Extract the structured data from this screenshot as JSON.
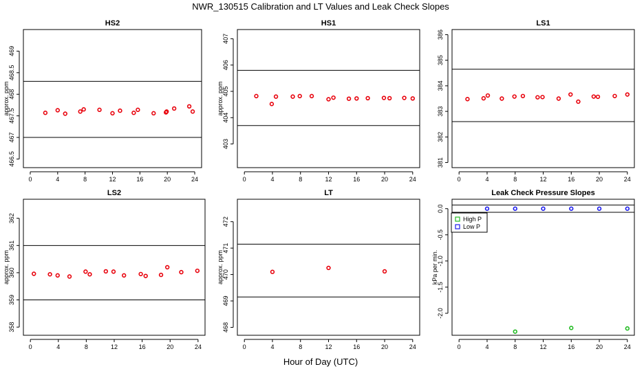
{
  "figure": {
    "suptitle": "NWR_130515  Calibration and LT Values and Leak Check Slopes",
    "xlabel": "Hour of Day (UTC)"
  },
  "chart_data": [
    {
      "type": "scatter",
      "title": "HS2",
      "ylabel": "approx. ppm",
      "xlim": [
        -1,
        25
      ],
      "x_ticks": [
        0,
        4,
        8,
        12,
        16,
        20,
        24
      ],
      "ylim": [
        466.3,
        469.5
      ],
      "y_ticks": [
        466.5,
        467,
        467.5,
        468,
        468.5,
        469
      ],
      "reference_lines": [
        468.3,
        467.0
      ],
      "marker_color": "#e8000b",
      "series": [
        {
          "x": [
            2.2,
            4.0,
            5.1,
            7.3,
            7.8,
            10.1,
            12.0,
            13.1,
            15.1,
            15.7,
            18.0,
            19.8,
            19.9,
            21.0,
            23.2,
            23.7
          ],
          "y": [
            467.57,
            467.63,
            467.55,
            467.6,
            467.65,
            467.64,
            467.56,
            467.62,
            467.57,
            467.64,
            467.56,
            467.58,
            467.6,
            467.67,
            467.72,
            467.6
          ]
        }
      ]
    },
    {
      "type": "scatter",
      "title": "HS1",
      "ylabel": "approx. ppm",
      "xlim": [
        -1,
        25
      ],
      "x_ticks": [
        0,
        4,
        8,
        12,
        16,
        20,
        24
      ],
      "ylim": [
        402.1,
        407.35
      ],
      "y_ticks": [
        403,
        404,
        405,
        406,
        407
      ],
      "reference_lines": [
        405.8,
        403.7
      ],
      "marker_color": "#e8000b",
      "series": [
        {
          "x": [
            1.7,
            3.9,
            4.5,
            6.9,
            7.9,
            9.6,
            12.0,
            12.7,
            14.9,
            16.0,
            17.6,
            19.9,
            20.7,
            22.8,
            24.0
          ],
          "y": [
            404.82,
            404.52,
            404.8,
            404.8,
            404.82,
            404.82,
            404.7,
            404.76,
            404.72,
            404.73,
            404.74,
            404.75,
            404.74,
            404.75,
            404.73
          ]
        }
      ]
    },
    {
      "type": "scatter",
      "title": "LS1",
      "ylabel": "",
      "xlim": [
        -1,
        25
      ],
      "x_ticks": [
        0,
        4,
        8,
        12,
        16,
        20,
        24
      ],
      "ylim": [
        380.8,
        386.2
      ],
      "y_ticks": [
        381,
        382,
        383,
        384,
        385,
        386
      ],
      "reference_lines": [
        384.65,
        382.6
      ],
      "marker_color": "#e8000b",
      "series": [
        {
          "x": [
            1.2,
            3.5,
            4.1,
            6.1,
            7.9,
            9.1,
            11.2,
            11.9,
            14.2,
            15.9,
            17.0,
            19.2,
            19.8,
            22.2,
            24.0
          ],
          "y": [
            383.48,
            383.51,
            383.62,
            383.5,
            383.58,
            383.6,
            383.55,
            383.56,
            383.5,
            383.66,
            383.38,
            383.58,
            383.57,
            383.6,
            383.66
          ]
        }
      ]
    },
    {
      "type": "scatter",
      "title": "LS2",
      "ylabel": "approx. ppm",
      "xlim": [
        -1,
        25
      ],
      "x_ticks": [
        0,
        4,
        8,
        12,
        16,
        20,
        24
      ],
      "ylim": [
        357.7,
        362.7
      ],
      "y_ticks": [
        358,
        359,
        360,
        361,
        362
      ],
      "reference_lines": [
        361.0,
        359.0
      ],
      "marker_color": "#e8000b",
      "series": [
        {
          "x": [
            0.5,
            2.8,
            3.9,
            5.6,
            7.9,
            8.5,
            10.8,
            11.9,
            13.4,
            15.8,
            16.5,
            18.7,
            19.6,
            21.6,
            23.9
          ],
          "y": [
            359.96,
            359.94,
            359.9,
            359.86,
            360.04,
            359.94,
            360.05,
            360.04,
            359.9,
            359.95,
            359.88,
            359.92,
            360.2,
            360.02,
            360.07
          ]
        }
      ]
    },
    {
      "type": "scatter",
      "title": "LT",
      "ylabel": "approx. ppm",
      "xlim": [
        -1,
        25
      ],
      "x_ticks": [
        0,
        4,
        8,
        12,
        16,
        20,
        24
      ],
      "ylim": [
        467.7,
        472.85
      ],
      "y_ticks": [
        468,
        469,
        470,
        471,
        472
      ],
      "reference_lines": [
        471.15,
        469.15
      ],
      "marker_color": "#e8000b",
      "series": [
        {
          "x": [
            4.0,
            12.0,
            20.0
          ],
          "y": [
            470.1,
            470.25,
            470.12
          ]
        }
      ]
    },
    {
      "type": "scatter",
      "title": "Leak Check Pressure Slopes",
      "ylabel": "kPa per min.",
      "xlim": [
        -1,
        25
      ],
      "x_ticks": [
        0,
        4,
        8,
        12,
        16,
        20,
        24
      ],
      "ylim": [
        -2.42,
        0.18
      ],
      "y_ticks": [
        0.0,
        -0.5,
        -1.0,
        -1.5,
        -2.0
      ],
      "y_tick_labels": [
        "0.0",
        "-0.5",
        "-1.0",
        "-1.5",
        "-2.0"
      ],
      "reference_lines": [
        0.07,
        -0.07
      ],
      "legend_position": "top-left",
      "series": [
        {
          "name": "High P",
          "color": "#22bb22",
          "x": [
            8,
            16,
            24
          ],
          "y": [
            -2.35,
            -2.28,
            -2.29
          ]
        },
        {
          "name": "Low P",
          "color": "#1a1aee",
          "x": [
            4,
            8,
            12,
            16,
            20,
            24
          ],
          "y": [
            0.0,
            0.0,
            0.0,
            0.0,
            0.0,
            0.0
          ]
        }
      ]
    }
  ]
}
